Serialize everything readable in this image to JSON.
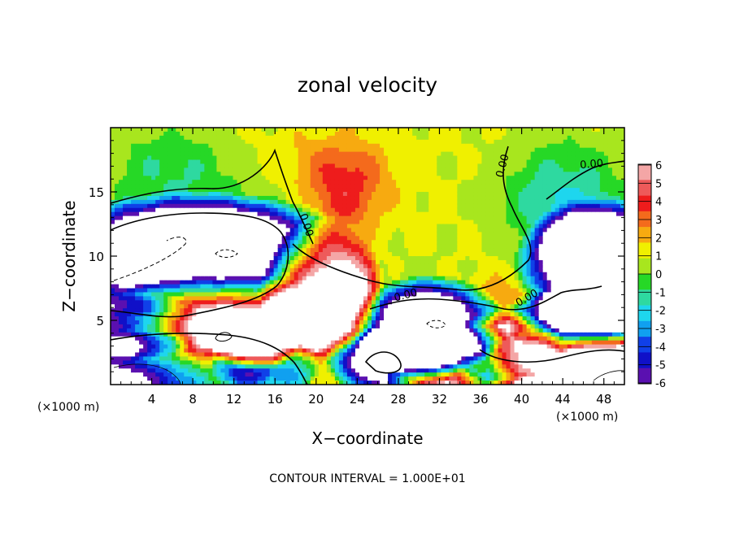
{
  "chart_data": {
    "type": "heatmap",
    "title": "zonal velocity",
    "xlabel": "X−coordinate",
    "ylabel": "Z−coordinate",
    "x_unit_left": "(×1000 m)",
    "x_unit_right": "(×1000 m)",
    "xlim": [
      0,
      50
    ],
    "ylim": [
      0,
      20
    ],
    "x_ticks": [
      4,
      8,
      12,
      16,
      20,
      24,
      28,
      32,
      36,
      40,
      44,
      48
    ],
    "y_ticks": [
      5,
      10,
      15
    ],
    "colorbar": {
      "ticks": [
        6,
        5,
        4,
        3,
        2,
        1,
        0,
        -1,
        -2,
        -3,
        -4,
        -5,
        -6
      ],
      "colors": [
        "#f4a6a6",
        "#ee5a5a",
        "#ee1c1c",
        "#f46a1c",
        "#f7aa10",
        "#f0f000",
        "#a8e61e",
        "#26d826",
        "#2ed9a0",
        "#1ed6ee",
        "#10a0f0",
        "#1040e8",
        "#1010c8",
        "#5a10b0"
      ]
    },
    "contour_labels": [
      "0.00",
      "0.00",
      "0.00",
      "0.00",
      "0.00"
    ],
    "footnote": "CONTOUR INTERVAL = 1.000E+01",
    "background_value": 1.0,
    "blobs": [
      {
        "x": 23,
        "y": 15.5,
        "sx": 4,
        "sy": 3,
        "v": 2.5
      },
      {
        "x": 22,
        "y": 12.5,
        "sx": 3,
        "sy": 2.5,
        "v": 1.5
      },
      {
        "x": 20,
        "y": 17.5,
        "sx": 6,
        "sy": 2.5,
        "v": 0.8
      },
      {
        "x": 6,
        "y": 17,
        "sx": 7,
        "sy": 3,
        "v": -1.8
      },
      {
        "x": 44,
        "y": 15,
        "sx": 6,
        "sy": 4,
        "v": -2.4
      },
      {
        "x": 10,
        "y": 12.5,
        "sx": 9,
        "sy": 2.5,
        "v": -2.6
      },
      {
        "x": 46,
        "y": 11,
        "sx": 5,
        "sy": 3,
        "v": -2.8
      },
      {
        "x": 38,
        "y": 7,
        "sx": 4,
        "sy": 2,
        "v": 1.2
      },
      {
        "x": 30,
        "y": 8,
        "sx": 6,
        "sy": 2,
        "v": -0.5
      }
    ],
    "regions": [
      {
        "x": 8,
        "y": 10,
        "rx": 8,
        "ry": 2.3,
        "v": -9
      },
      {
        "x": 48,
        "y": 9.2,
        "rx": 4,
        "ry": 2.5,
        "v": -9
      },
      {
        "x": 20.5,
        "y": 7.5,
        "rx": 2.8,
        "ry": 2.5,
        "v": 9
      },
      {
        "x": 2,
        "y": 4.5,
        "rx": 3.5,
        "ry": 1.2,
        "v": -9
      },
      {
        "x": 10,
        "y": 3.8,
        "rx": 5.5,
        "ry": 2.4,
        "v": 9
      },
      {
        "x": 31,
        "y": 4.6,
        "rx": 3.5,
        "ry": 1.8,
        "v": -9
      },
      {
        "x": 35.5,
        "y": 2.2,
        "rx": 4.5,
        "ry": 1.1,
        "v": -9
      },
      {
        "x": 38.5,
        "y": 3.2,
        "rx": 2.5,
        "ry": 1.2,
        "v": 8
      },
      {
        "x": 45.5,
        "y": 5,
        "rx": 3.5,
        "ry": 1.2,
        "v": -8
      },
      {
        "x": 27.5,
        "y": 1.8,
        "rx": 3,
        "ry": 1.3,
        "v": -9
      },
      {
        "x": 31.5,
        "y": 1.2,
        "rx": 2.5,
        "ry": 1,
        "v": 9
      },
      {
        "x": 46,
        "y": 1.2,
        "rx": 5,
        "ry": 1.5,
        "v": 9
      },
      {
        "x": 5,
        "y": 1.2,
        "rx": 5,
        "ry": 1.4,
        "v": -9
      },
      {
        "x": 15,
        "y": 1.6,
        "rx": 2.5,
        "ry": 1.2,
        "v": -8
      },
      {
        "x": 14,
        "y": 3.2,
        "rx": 2,
        "ry": 1,
        "v": 8
      }
    ]
  }
}
